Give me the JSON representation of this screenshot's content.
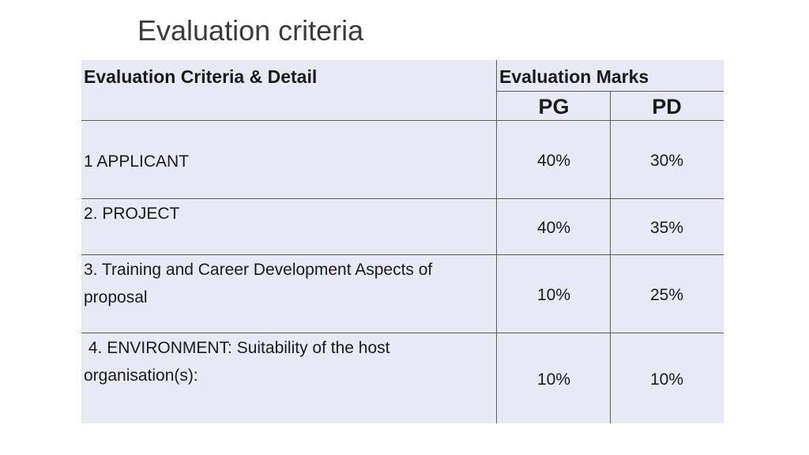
{
  "slide": {
    "title": "Evaluation criteria"
  },
  "table": {
    "criteria_header": "Evaluation Criteria & Detail",
    "marks_header": "Evaluation Marks",
    "sub_headers": {
      "pg": "PG",
      "pd": "PD"
    },
    "rows": [
      {
        "criterion": "1 APPLICANT",
        "pg": "40%",
        "pd": "30%"
      },
      {
        "criterion": "2. PROJECT",
        "pg": "40%",
        "pd": "35%"
      },
      {
        "criterion": "3. Training and Career Development Aspects of proposal",
        "pg": "10%",
        "pd": "25%"
      },
      {
        "criterion": " 4. ENVIRONMENT: Suitability of the host organisation(s):",
        "pg": "10%",
        "pd": "10%"
      }
    ]
  }
}
